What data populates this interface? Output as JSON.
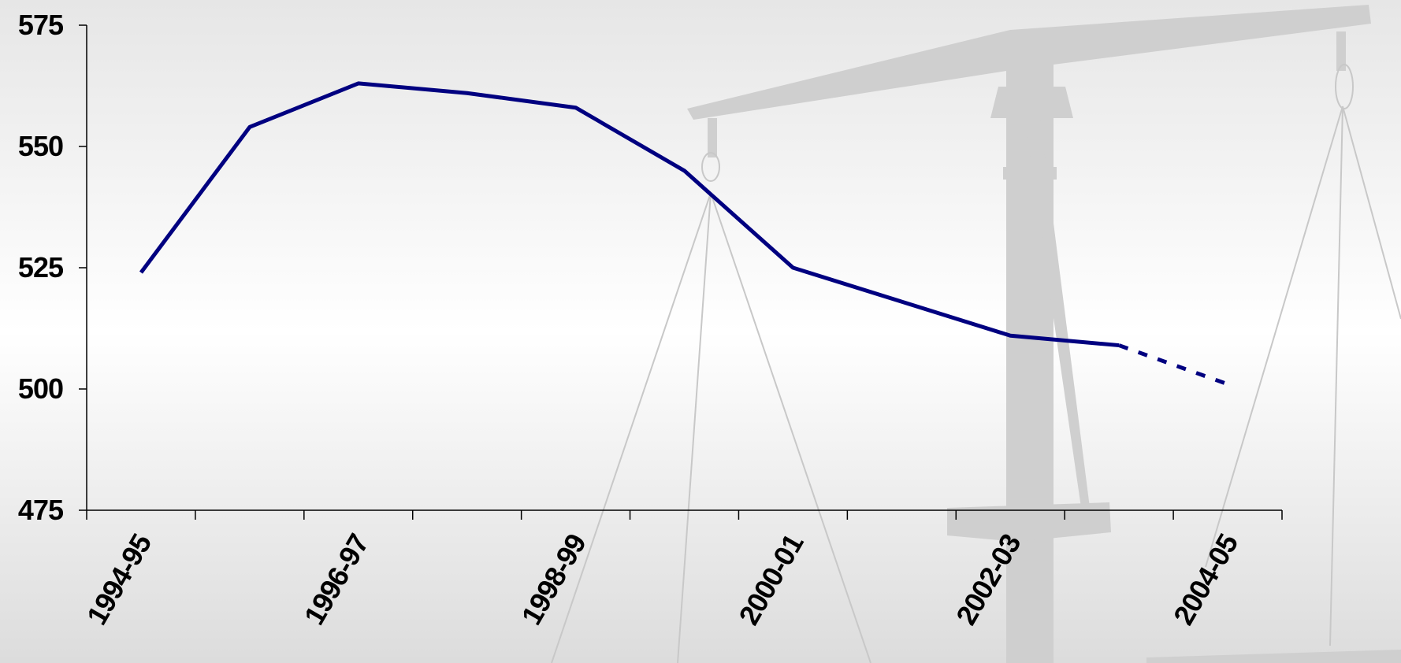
{
  "chart_data": {
    "type": "line",
    "categories": [
      "1994-95",
      null,
      "1996-97",
      null,
      "1998-99",
      null,
      "2000-01",
      null,
      "2002-03",
      null,
      "2004-05"
    ],
    "series": [
      {
        "color": "#000080",
        "style": "solid",
        "values": [
          524,
          554,
          563,
          561,
          558,
          545,
          525,
          518,
          511,
          509,
          null
        ]
      },
      {
        "color": "#000080",
        "style": "dashed",
        "values": [
          null,
          null,
          null,
          null,
          null,
          null,
          null,
          null,
          null,
          509,
          501
        ]
      }
    ],
    "ylim": [
      475,
      575
    ],
    "yticks": [
      475,
      500,
      525,
      550,
      575
    ],
    "grid": false
  }
}
